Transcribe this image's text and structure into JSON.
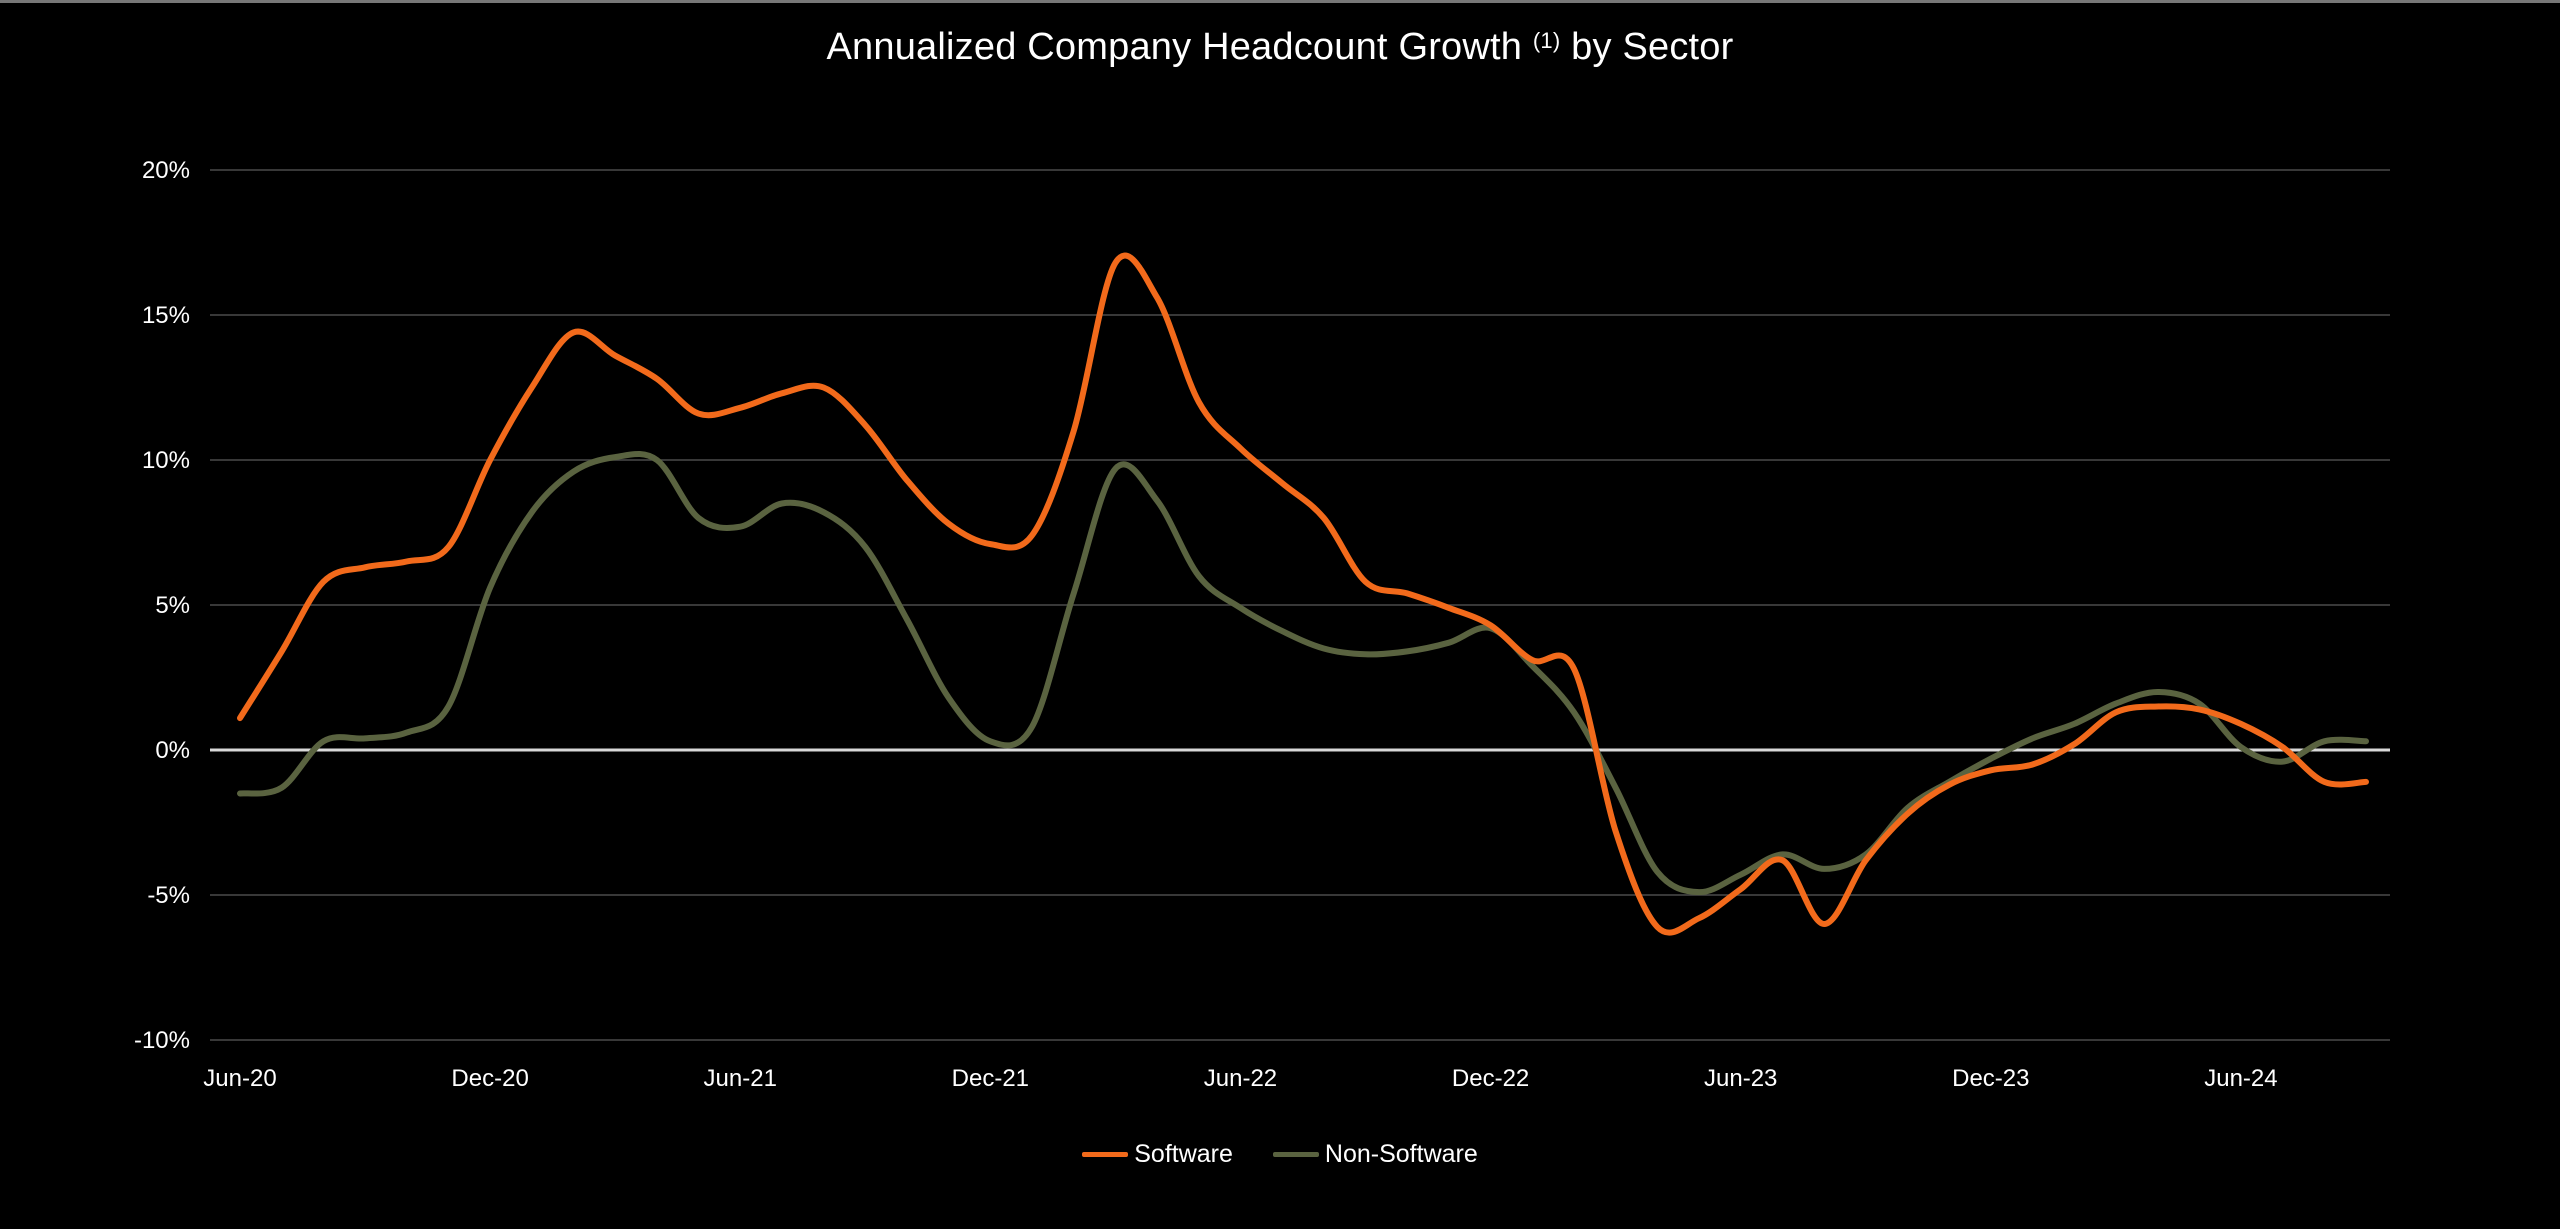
{
  "chart_data": {
    "type": "line",
    "title": "Annualized Company Headcount Growth",
    "title_superscript": "(1)",
    "title_suffix": "by Sector",
    "xlabel": "",
    "ylabel": "",
    "ylim": [
      -10,
      20
    ],
    "y_ticks": [
      20,
      15,
      10,
      5,
      0,
      -5,
      -10
    ],
    "y_tick_labels": [
      "20%",
      "15%",
      "10%",
      "5%",
      "0%",
      "-5%",
      "-10%"
    ],
    "x_range": [
      0,
      51
    ],
    "x_ticks": [
      0,
      6,
      12,
      18,
      24,
      30,
      36,
      42,
      48
    ],
    "x_tick_labels": [
      "Jun-20",
      "Dec-20",
      "Jun-21",
      "Dec-21",
      "Jun-22",
      "Dec-22",
      "Jun-23",
      "Dec-23",
      "Jun-24"
    ],
    "x": [
      0,
      1,
      2,
      3,
      4,
      5,
      6,
      7,
      8,
      9,
      10,
      11,
      12,
      13,
      14,
      15,
      16,
      17,
      18,
      19,
      20,
      21,
      22,
      23,
      24,
      25,
      26,
      27,
      28,
      29,
      30,
      31,
      32,
      33,
      34,
      35,
      36,
      37,
      38,
      39,
      40,
      41,
      42,
      43,
      44,
      45,
      46,
      47,
      48,
      49,
      50,
      51
    ],
    "series": [
      {
        "name": "Software",
        "color": "#f26a1b",
        "values": [
          1.1,
          3.4,
          5.8,
          6.3,
          6.5,
          7.0,
          10.0,
          12.5,
          14.4,
          13.6,
          12.8,
          11.6,
          11.8,
          12.3,
          12.5,
          11.2,
          9.3,
          7.8,
          7.1,
          7.4,
          11.0,
          16.8,
          15.6,
          12.0,
          10.4,
          9.2,
          8.0,
          5.8,
          5.4,
          4.9,
          4.3,
          3.1,
          2.8,
          -2.8,
          -6.1,
          -5.8,
          -4.8,
          -3.8,
          -6.0,
          -3.8,
          -2.2,
          -1.2,
          -0.7,
          -0.5,
          0.2,
          1.3,
          1.5,
          1.4,
          0.9,
          0.1,
          -1.1,
          -1.1
        ]
      },
      {
        "name": "Non-Software",
        "color": "#5a6340",
        "values": [
          -1.5,
          -1.3,
          0.3,
          0.4,
          0.6,
          1.5,
          5.6,
          8.2,
          9.6,
          10.1,
          10.0,
          8.0,
          7.7,
          8.5,
          8.2,
          7.0,
          4.5,
          1.8,
          0.3,
          0.8,
          5.4,
          9.7,
          8.6,
          6.0,
          4.9,
          4.1,
          3.5,
          3.3,
          3.4,
          3.7,
          4.2,
          2.9,
          1.3,
          -1.3,
          -4.2,
          -4.9,
          -4.3,
          -3.6,
          -4.1,
          -3.6,
          -2.0,
          -1.1,
          -0.3,
          0.4,
          0.9,
          1.6,
          2.0,
          1.6,
          0.1,
          -0.4,
          0.3,
          0.3
        ]
      }
    ],
    "legend_position": "bottom-center"
  }
}
